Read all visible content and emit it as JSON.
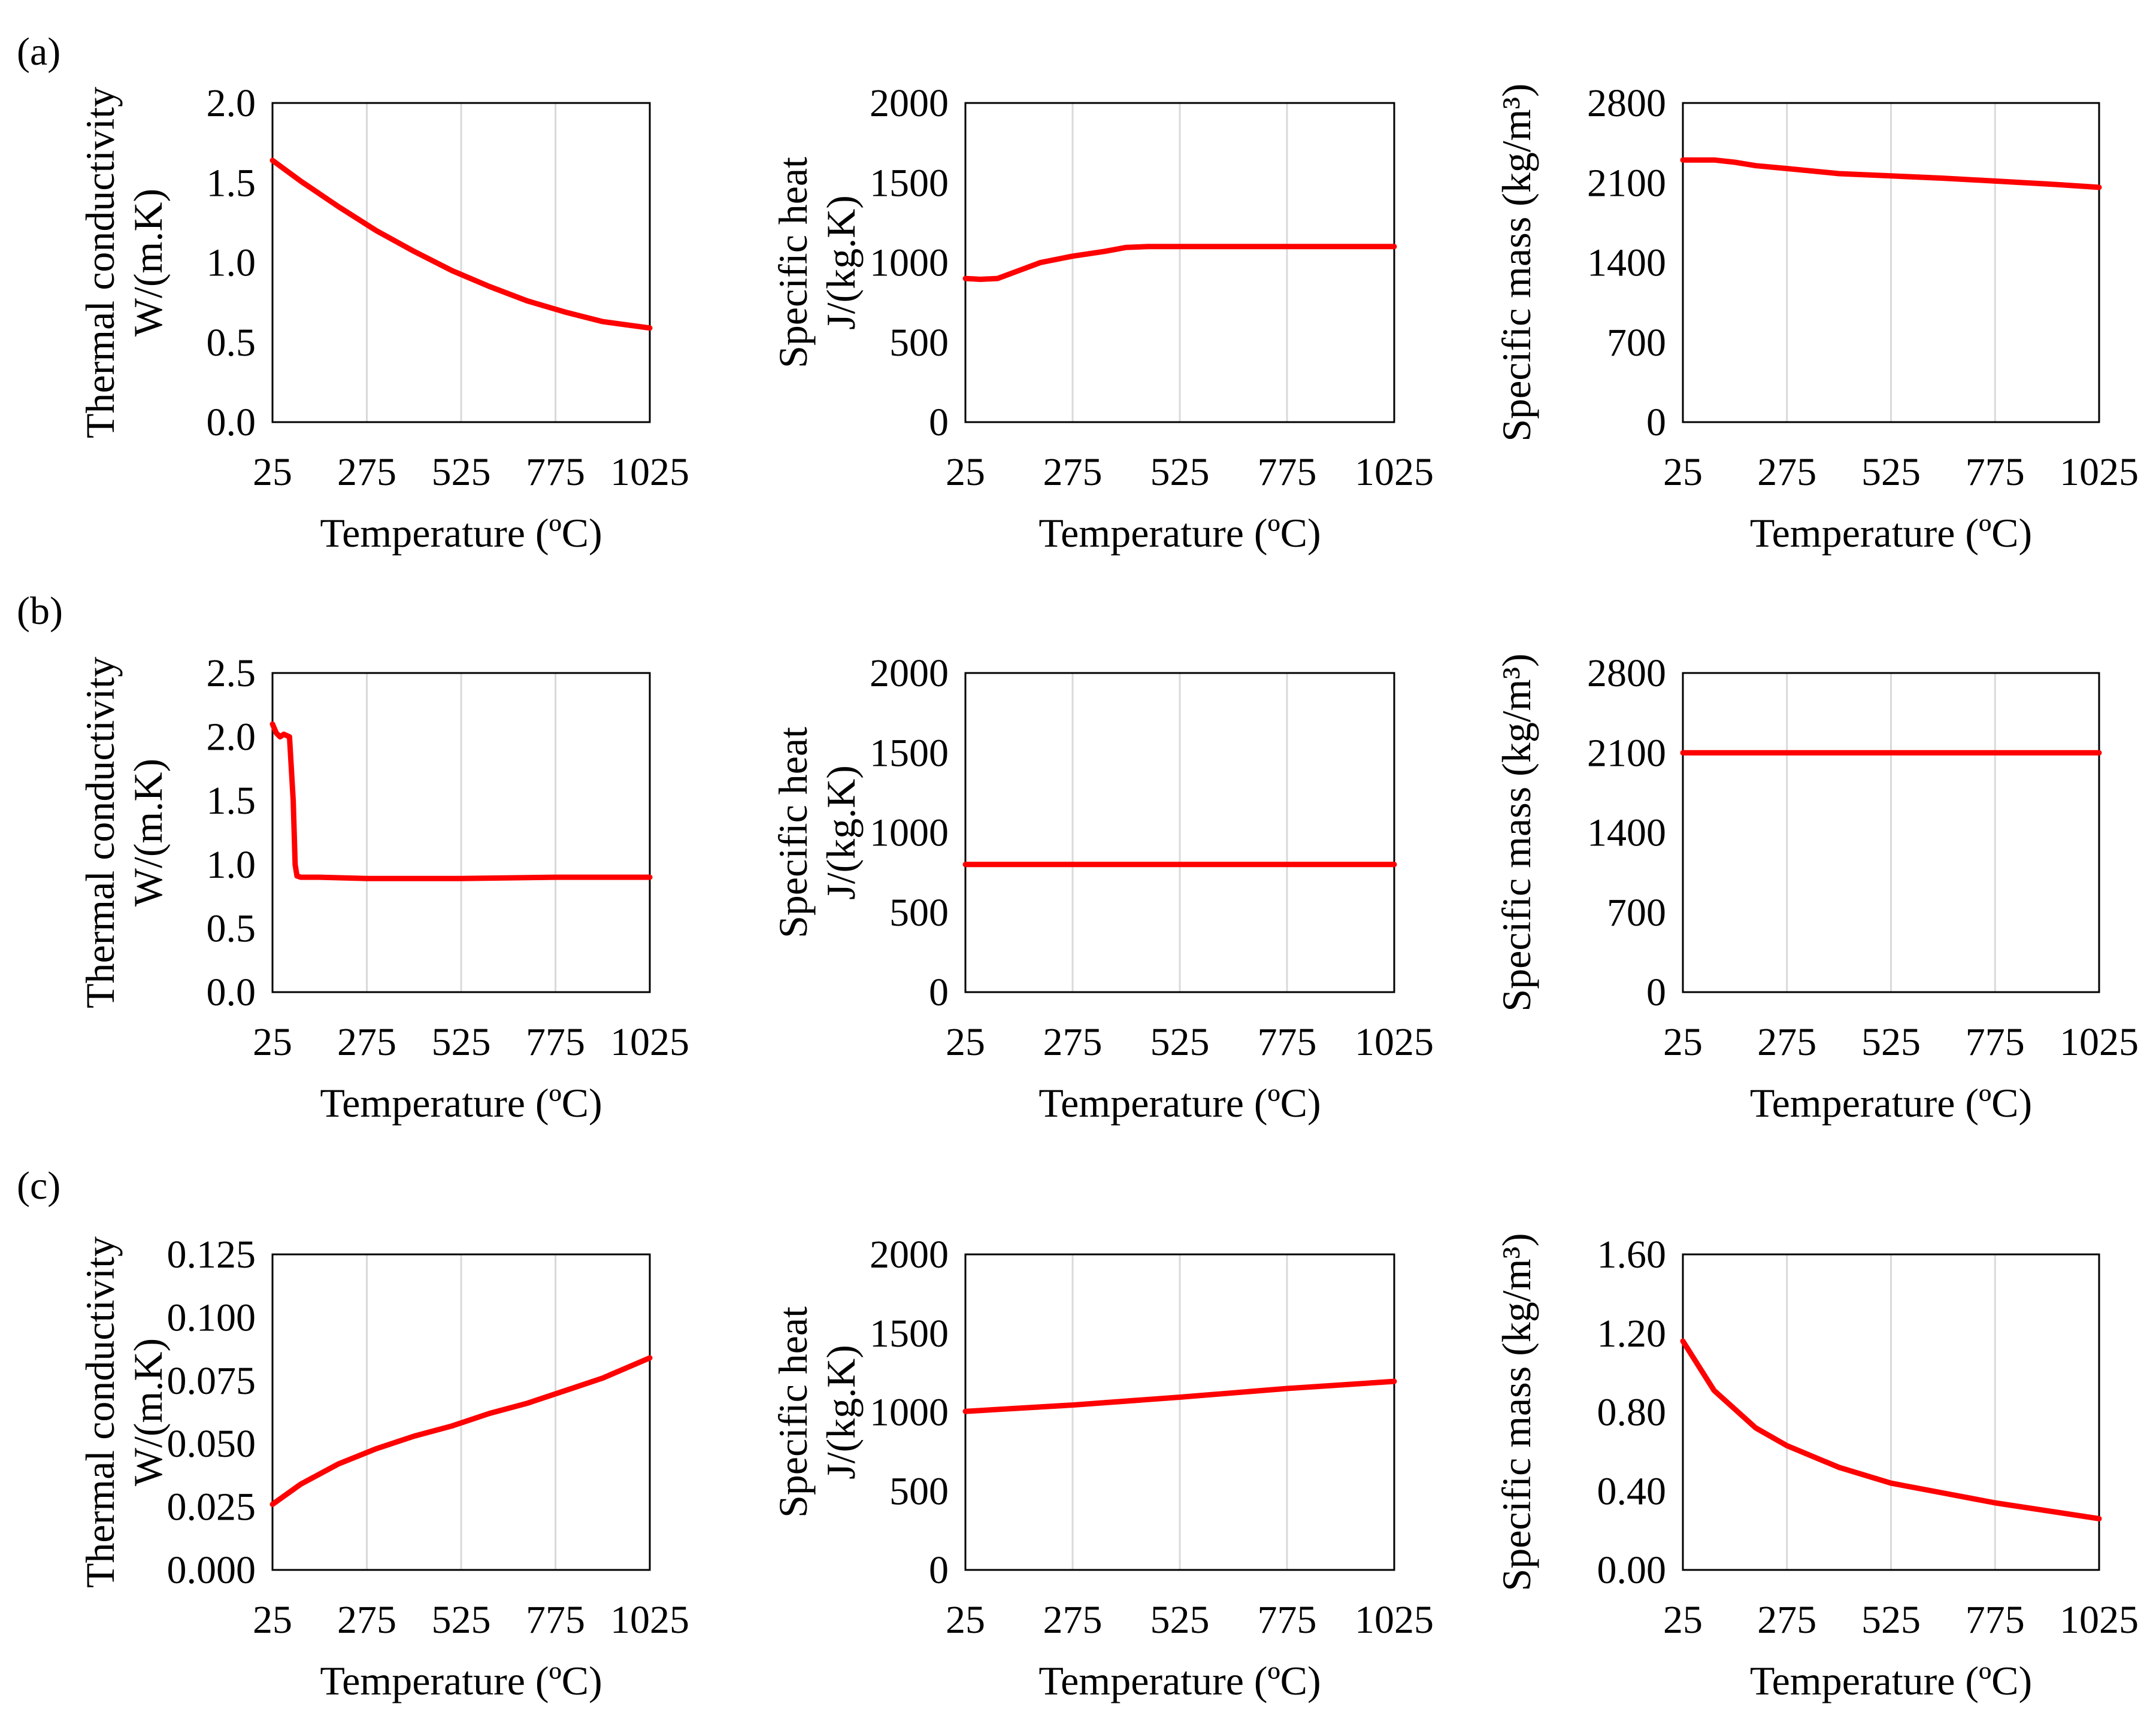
{
  "colors": {
    "series": "#ff0000",
    "grid": "#d9d9d9",
    "axis": "#000000"
  },
  "panel_labels": [
    "(a)",
    "(b)",
    "(c)"
  ],
  "chart_data": [
    {
      "id": "a-thermal",
      "row": 0,
      "col": 0,
      "type": "line",
      "xlabel": "Temperature (ºC)",
      "ylabel": [
        "Thermal conductivity",
        "W/(m.K)"
      ],
      "xlim": [
        25,
        1025
      ],
      "xticks": [
        "25",
        "275",
        "525",
        "775",
        "1025"
      ],
      "ylim": [
        0,
        2.0
      ],
      "yticks": [
        "0.0",
        "0.5",
        "1.0",
        "1.5",
        "2.0"
      ],
      "grid": "vertical",
      "series": [
        {
          "x": [
            25,
            100,
            200,
            300,
            400,
            500,
            600,
            700,
            800,
            900,
            1025
          ],
          "y": [
            1.64,
            1.51,
            1.35,
            1.2,
            1.07,
            0.95,
            0.85,
            0.76,
            0.69,
            0.63,
            0.59
          ]
        }
      ]
    },
    {
      "id": "a-specific-heat",
      "row": 0,
      "col": 1,
      "type": "line",
      "xlabel": "Temperature (ºC)",
      "ylabel": [
        "Specific heat",
        "J/(kg.K)"
      ],
      "xlim": [
        25,
        1025
      ],
      "xticks": [
        "25",
        "275",
        "525",
        "775",
        "1025"
      ],
      "ylim": [
        0,
        2000
      ],
      "yticks": [
        "0",
        "500",
        "1000",
        "1500",
        "2000"
      ],
      "grid": "vertical",
      "series": [
        {
          "x": [
            25,
            60,
            100,
            150,
            200,
            275,
            350,
            400,
            450,
            525,
            600,
            775,
            1025
          ],
          "y": [
            900,
            895,
            900,
            950,
            1000,
            1040,
            1070,
            1095,
            1100,
            1100,
            1100,
            1100,
            1100
          ]
        }
      ]
    },
    {
      "id": "a-specific-mass",
      "row": 0,
      "col": 2,
      "type": "line",
      "xlabel": "Temperature (ºC)",
      "ylabel": [
        "Specific mass (kg/m³)"
      ],
      "xlim": [
        25,
        1025
      ],
      "xticks": [
        "25",
        "275",
        "525",
        "775",
        "1025"
      ],
      "ylim": [
        0,
        2800
      ],
      "yticks": [
        "0",
        "700",
        "1400",
        "2100",
        "2800"
      ],
      "grid": "vertical",
      "series": [
        {
          "x": [
            25,
            100,
            150,
            200,
            275,
            400,
            525,
            650,
            775,
            900,
            1025
          ],
          "y": [
            2300,
            2300,
            2280,
            2250,
            2225,
            2180,
            2160,
            2140,
            2115,
            2090,
            2060
          ]
        }
      ]
    },
    {
      "id": "b-thermal",
      "row": 1,
      "col": 0,
      "type": "line",
      "xlabel": "Temperature (ºC)",
      "ylabel": [
        "Thermal conductivity",
        "W/(m.K)"
      ],
      "xlim": [
        25,
        1025
      ],
      "xticks": [
        "25",
        "275",
        "525",
        "775",
        "1025"
      ],
      "ylim": [
        0,
        2.5
      ],
      "yticks": [
        "0.0",
        "0.5",
        "1.0",
        "1.5",
        "2.0",
        "2.5"
      ],
      "grid": "vertical",
      "series": [
        {
          "x": [
            25,
            35,
            45,
            55,
            70,
            80,
            85,
            90,
            100,
            150,
            275,
            525,
            775,
            1025
          ],
          "y": [
            2.1,
            2.03,
            2.0,
            2.02,
            2.0,
            1.5,
            1.0,
            0.91,
            0.9,
            0.9,
            0.89,
            0.89,
            0.9,
            0.9
          ]
        }
      ]
    },
    {
      "id": "b-specific-heat",
      "row": 1,
      "col": 1,
      "type": "line",
      "xlabel": "Temperature (ºC)",
      "ylabel": [
        "Specific heat",
        "J/(kg.K)"
      ],
      "xlim": [
        25,
        1025
      ],
      "xticks": [
        "25",
        "275",
        "525",
        "775",
        "1025"
      ],
      "ylim": [
        0,
        2000
      ],
      "yticks": [
        "0",
        "500",
        "1000",
        "1500",
        "2000"
      ],
      "grid": "vertical",
      "series": [
        {
          "x": [
            25,
            1025
          ],
          "y": [
            800,
            800
          ]
        }
      ]
    },
    {
      "id": "b-specific-mass",
      "row": 1,
      "col": 2,
      "type": "line",
      "xlabel": "Temperature (ºC)",
      "ylabel": [
        "Specific mass (kg/m³)"
      ],
      "xlim": [
        25,
        1025
      ],
      "xticks": [
        "25",
        "275",
        "525",
        "775",
        "1025"
      ],
      "ylim": [
        0,
        2800
      ],
      "yticks": [
        "0",
        "700",
        "1400",
        "2100",
        "2800"
      ],
      "grid": "vertical",
      "series": [
        {
          "x": [
            25,
            1025
          ],
          "y": [
            2100,
            2100
          ]
        }
      ]
    },
    {
      "id": "c-thermal",
      "row": 2,
      "col": 0,
      "type": "line",
      "xlabel": "Temperature (ºC)",
      "ylabel": [
        "Thermal conductivity",
        "W/(m.K)"
      ],
      "xlim": [
        25,
        1025
      ],
      "xticks": [
        "25",
        "275",
        "525",
        "775",
        "1025"
      ],
      "ylim": [
        0,
        0.125
      ],
      "yticks": [
        "0.000",
        "0.025",
        "0.050",
        "0.075",
        "0.100",
        "0.125"
      ],
      "grid": "vertical",
      "series": [
        {
          "x": [
            25,
            100,
            200,
            300,
            400,
            500,
            600,
            700,
            800,
            900,
            1025
          ],
          "y": [
            0.026,
            0.034,
            0.042,
            0.048,
            0.053,
            0.057,
            0.062,
            0.066,
            0.071,
            0.076,
            0.084
          ]
        }
      ]
    },
    {
      "id": "c-specific-heat",
      "row": 2,
      "col": 1,
      "type": "line",
      "xlabel": "Temperature (ºC)",
      "ylabel": [
        "Specific heat",
        "J/(kg.K)"
      ],
      "xlim": [
        25,
        1025
      ],
      "xticks": [
        "25",
        "275",
        "525",
        "775",
        "1025"
      ],
      "ylim": [
        0,
        2000
      ],
      "yticks": [
        "0",
        "500",
        "1000",
        "1500",
        "2000"
      ],
      "grid": "vertical",
      "series": [
        {
          "x": [
            25,
            275,
            525,
            775,
            1025
          ],
          "y": [
            1005,
            1045,
            1095,
            1150,
            1195
          ]
        }
      ]
    },
    {
      "id": "c-specific-mass",
      "row": 2,
      "col": 2,
      "type": "line",
      "xlabel": "Temperature (ºC)",
      "ylabel": [
        "Specific mass (kg/m³)"
      ],
      "xlim": [
        25,
        1025
      ],
      "xticks": [
        "25",
        "275",
        "525",
        "775",
        "1025"
      ],
      "ylim": [
        0,
        1.6
      ],
      "yticks": [
        "0.00",
        "0.40",
        "0.80",
        "1.20",
        "1.60"
      ],
      "grid": "vertical",
      "series": [
        {
          "x": [
            25,
            100,
            200,
            275,
            400,
            525,
            650,
            775,
            900,
            1025
          ],
          "y": [
            1.16,
            0.91,
            0.72,
            0.63,
            0.52,
            0.44,
            0.39,
            0.34,
            0.3,
            0.26
          ]
        }
      ]
    }
  ]
}
